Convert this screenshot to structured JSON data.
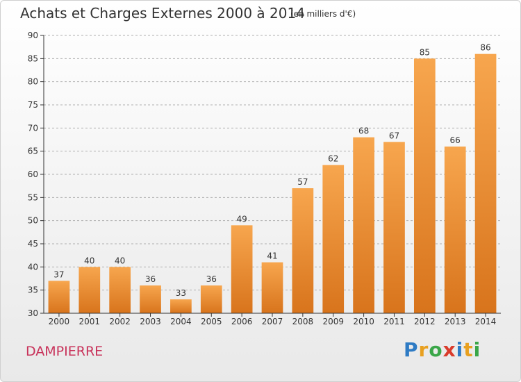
{
  "title": "Achats et Charges Externes 2000 à 2014",
  "subtitle": "(en milliers d'€)",
  "commune": "DAMPIERRE",
  "logo": {
    "text": "Proxiti",
    "letters": [
      {
        "char": "P",
        "color": "#2e7bc4"
      },
      {
        "char": "r",
        "color": "#e8a020"
      },
      {
        "char": "o",
        "color": "#3aa648"
      },
      {
        "char": "x",
        "color": "#d93b2b"
      },
      {
        "char": "i",
        "color": "#2e7bc4"
      },
      {
        "char": "t",
        "color": "#e8a020"
      },
      {
        "char": "i",
        "color": "#3aa648"
      }
    ]
  },
  "colors": {
    "bar_top": "#f7a64e",
    "bar_bottom": "#d8741c",
    "axis": "#333333",
    "grid": "#b0b0b0",
    "text": "#333333"
  },
  "chart_data": {
    "type": "bar",
    "categories": [
      "2000",
      "2001",
      "2002",
      "2003",
      "2004",
      "2005",
      "2006",
      "2007",
      "2008",
      "2009",
      "2010",
      "2011",
      "2012",
      "2013",
      "2014"
    ],
    "values": [
      37,
      40,
      40,
      36,
      33,
      36,
      49,
      41,
      57,
      62,
      68,
      67,
      85,
      66,
      86
    ],
    "title": "Achats et Charges Externes 2000 à 2014",
    "ylim": [
      30,
      90
    ],
    "yticks": [
      30,
      35,
      40,
      45,
      50,
      55,
      60,
      65,
      70,
      75,
      80,
      85,
      90
    ],
    "grid": true,
    "legend": "none"
  }
}
